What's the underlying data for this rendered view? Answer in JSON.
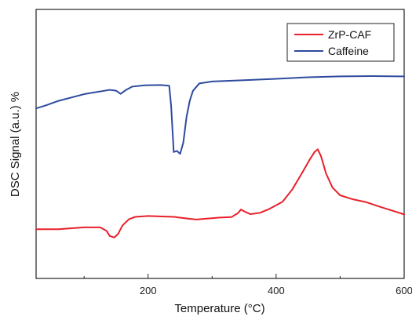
{
  "chart_data": {
    "type": "line",
    "title": "",
    "xlabel": "Temperature (°C)",
    "ylabel": "DSC Signal (a.u.) %",
    "xlim": [
      25,
      600
    ],
    "ylim": [
      0,
      1
    ],
    "x_ticks": [
      {
        "value": 200,
        "label": "200"
      },
      {
        "value": 400,
        "label": "400"
      },
      {
        "value": 600,
        "label": "600"
      }
    ],
    "x_minor_ticks": [
      100,
      300,
      500
    ],
    "legend_position": "top-right",
    "grid": false,
    "series": [
      {
        "name": "ZrP-CAF",
        "color": "#e8202a",
        "points": [
          [
            25,
            0.183
          ],
          [
            60,
            0.183
          ],
          [
            100,
            0.19
          ],
          [
            125,
            0.19
          ],
          [
            135,
            0.177
          ],
          [
            140,
            0.158
          ],
          [
            147,
            0.152
          ],
          [
            153,
            0.165
          ],
          [
            160,
            0.197
          ],
          [
            170,
            0.22
          ],
          [
            180,
            0.229
          ],
          [
            200,
            0.232
          ],
          [
            240,
            0.229
          ],
          [
            260,
            0.223
          ],
          [
            275,
            0.219
          ],
          [
            290,
            0.222
          ],
          [
            310,
            0.226
          ],
          [
            330,
            0.228
          ],
          [
            340,
            0.242
          ],
          [
            345,
            0.256
          ],
          [
            352,
            0.247
          ],
          [
            360,
            0.239
          ],
          [
            375,
            0.244
          ],
          [
            390,
            0.259
          ],
          [
            410,
            0.285
          ],
          [
            425,
            0.33
          ],
          [
            440,
            0.39
          ],
          [
            452,
            0.44
          ],
          [
            460,
            0.47
          ],
          [
            465,
            0.48
          ],
          [
            470,
            0.455
          ],
          [
            478,
            0.39
          ],
          [
            488,
            0.338
          ],
          [
            500,
            0.309
          ],
          [
            520,
            0.294
          ],
          [
            540,
            0.284
          ],
          [
            560,
            0.268
          ],
          [
            580,
            0.253
          ],
          [
            600,
            0.238
          ]
        ]
      },
      {
        "name": "Caffeine",
        "color": "#2e4a9e",
        "points": [
          [
            25,
            0.632
          ],
          [
            40,
            0.643
          ],
          [
            60,
            0.66
          ],
          [
            100,
            0.685
          ],
          [
            140,
            0.701
          ],
          [
            150,
            0.698
          ],
          [
            157,
            0.686
          ],
          [
            165,
            0.7
          ],
          [
            175,
            0.713
          ],
          [
            195,
            0.718
          ],
          [
            220,
            0.719
          ],
          [
            233,
            0.716
          ],
          [
            236,
            0.64
          ],
          [
            240,
            0.47
          ],
          [
            245,
            0.474
          ],
          [
            250,
            0.463
          ],
          [
            255,
            0.505
          ],
          [
            260,
            0.6
          ],
          [
            265,
            0.66
          ],
          [
            270,
            0.697
          ],
          [
            280,
            0.725
          ],
          [
            300,
            0.732
          ],
          [
            350,
            0.737
          ],
          [
            400,
            0.742
          ],
          [
            450,
            0.748
          ],
          [
            500,
            0.751
          ],
          [
            550,
            0.752
          ],
          [
            600,
            0.751
          ]
        ]
      }
    ]
  }
}
